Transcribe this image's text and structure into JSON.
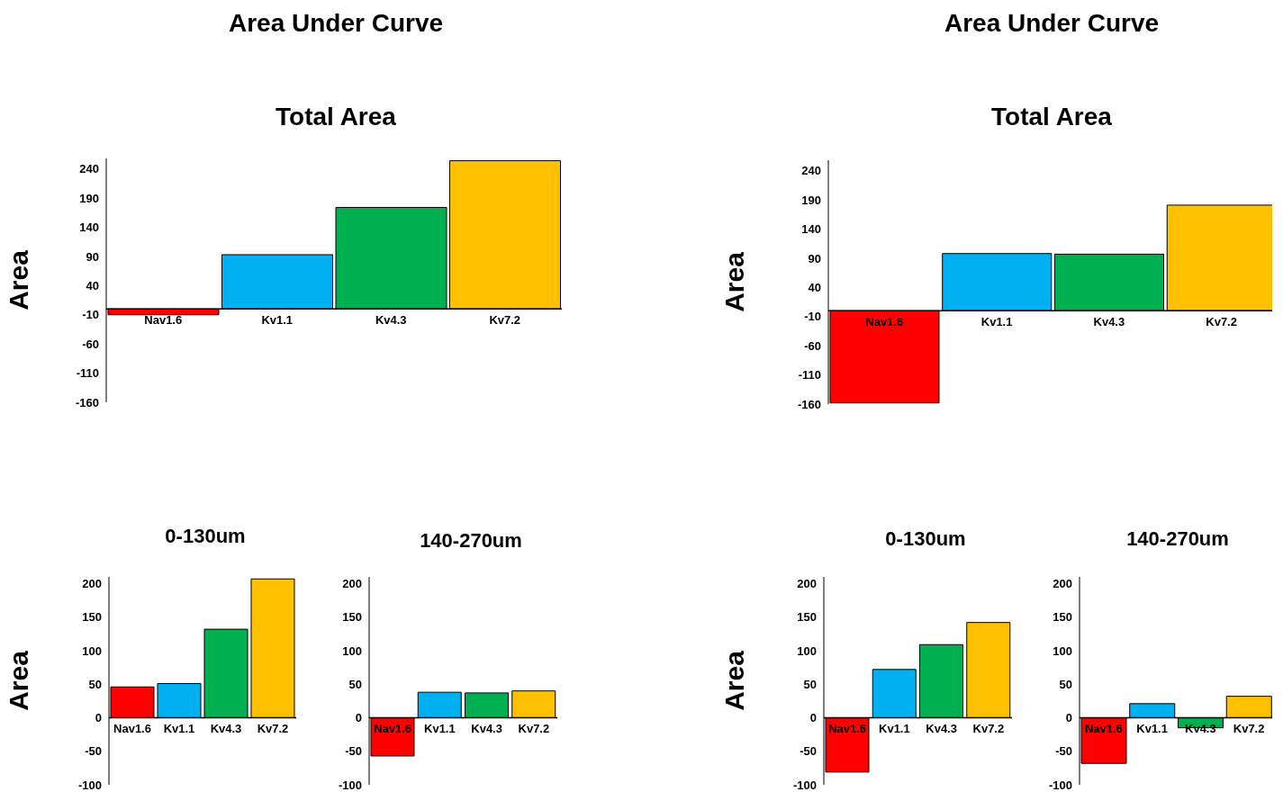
{
  "chart_data": [
    {
      "type": "bar",
      "title": "Area Under Curve",
      "subtitle": "Total Area",
      "ylabel": "Area",
      "categories": [
        "Nav1.6",
        "Kv1.1",
        "Kv4.3",
        "Kv7.2"
      ],
      "values": [
        -10,
        93,
        174,
        254
      ],
      "colors": [
        "#ff0000",
        "#00b0f0",
        "#00b050",
        "#ffc000"
      ],
      "ylim": [
        -160,
        258
      ],
      "yticks": [
        -160,
        -110,
        -60,
        -10,
        40,
        90,
        140,
        190,
        240
      ]
    },
    {
      "type": "bar",
      "title": "Area Under Curve",
      "subtitle": "Total Area",
      "ylabel": "Area",
      "categories": [
        "Nav1.6",
        "Kv1.1",
        "Kv4.3",
        "Kv7.2"
      ],
      "values": [
        -158,
        98,
        97,
        181
      ],
      "colors": [
        "#ff0000",
        "#00b0f0",
        "#00b050",
        "#ffc000"
      ],
      "ylim": [
        -160,
        258
      ],
      "yticks": [
        -160,
        -110,
        -60,
        -10,
        40,
        90,
        140,
        190,
        240
      ]
    },
    {
      "type": "bar",
      "title": "0-130um",
      "ylabel": "Area",
      "categories": [
        "Nav1.6",
        "Kv1.1",
        "Kv4.3",
        "Kv7.2"
      ],
      "values": [
        46,
        51,
        132,
        207
      ],
      "colors": [
        "#ff0000",
        "#00b0f0",
        "#00b050",
        "#ffc000"
      ],
      "ylim": [
        -100,
        210
      ],
      "yticks": [
        -100,
        -50,
        0,
        50,
        100,
        150,
        200
      ]
    },
    {
      "type": "bar",
      "title": "140-270um",
      "categories": [
        "Nav1.6",
        "Kv1.1",
        "Kv4.3",
        "Kv7.2"
      ],
      "values": [
        -57,
        38,
        37,
        40
      ],
      "colors": [
        "#ff0000",
        "#00b0f0",
        "#00b050",
        "#ffc000"
      ],
      "ylim": [
        -100,
        210
      ],
      "yticks": [
        -100,
        -50,
        0,
        50,
        100,
        150,
        200
      ]
    },
    {
      "type": "bar",
      "title": "0-130um",
      "ylabel": "Area",
      "categories": [
        "Nav1.6",
        "Kv1.1",
        "Kv4.3",
        "Kv7.2"
      ],
      "values": [
        -81,
        72,
        109,
        142
      ],
      "colors": [
        "#ff0000",
        "#00b0f0",
        "#00b050",
        "#ffc000"
      ],
      "ylim": [
        -100,
        210
      ],
      "yticks": [
        -100,
        -50,
        0,
        50,
        100,
        150,
        200
      ]
    },
    {
      "type": "bar",
      "title": "140-270um",
      "categories": [
        "Nav1.6",
        "Kv1.1",
        "Kv4.3",
        "Kv7.2"
      ],
      "values": [
        -68,
        21,
        -15,
        32
      ],
      "colors": [
        "#ff0000",
        "#00b0f0",
        "#00b050",
        "#ffc000"
      ],
      "ylim": [
        -100,
        210
      ],
      "yticks": [
        -100,
        -50,
        0,
        50,
        100,
        150,
        200
      ]
    }
  ]
}
